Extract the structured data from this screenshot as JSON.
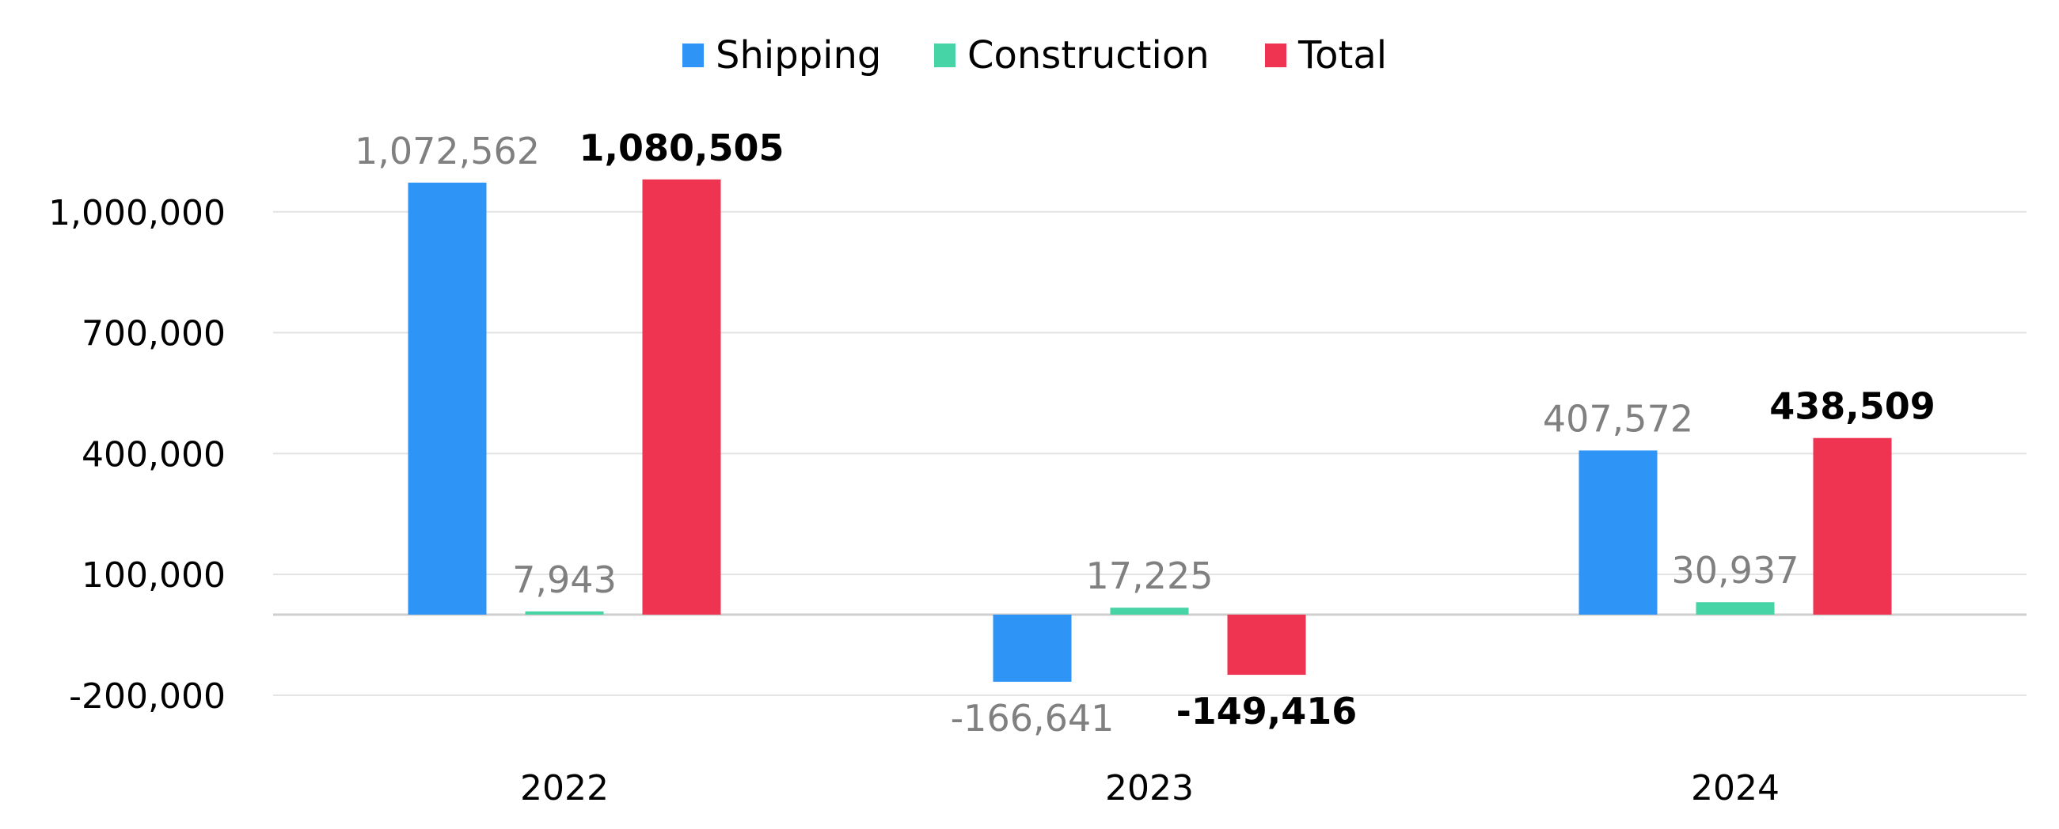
{
  "chart_data": {
    "type": "bar",
    "categories": [
      "2022",
      "2023",
      "2024"
    ],
    "series": [
      {
        "name": "Shipping",
        "color": "#2e95f7",
        "values": [
          1072562,
          -166641,
          407572
        ],
        "labels": [
          "1,072,562",
          "-166,641",
          "407,572"
        ]
      },
      {
        "name": "Construction",
        "color": "#46d3a5",
        "values": [
          7943,
          17225,
          30937
        ],
        "labels": [
          "7,943",
          "17,225",
          "30,937"
        ]
      },
      {
        "name": "Total",
        "color": "#ee3450",
        "values": [
          1080505,
          -149416,
          438509
        ],
        "labels": [
          "1,080,505",
          "-149,416",
          "438,509"
        ],
        "label_colors": [
          "#000000",
          "#000000",
          "#ff0000"
        ]
      }
    ],
    "y_ticks": [
      1000000,
      700000,
      400000,
      100000,
      -200000
    ],
    "y_tick_labels": [
      "1,000,000",
      "700,000",
      "400,000",
      "100,000",
      "-200,000"
    ],
    "ylim": [
      -230000,
      1230000
    ],
    "grid": true,
    "legend_position": "top-center"
  }
}
